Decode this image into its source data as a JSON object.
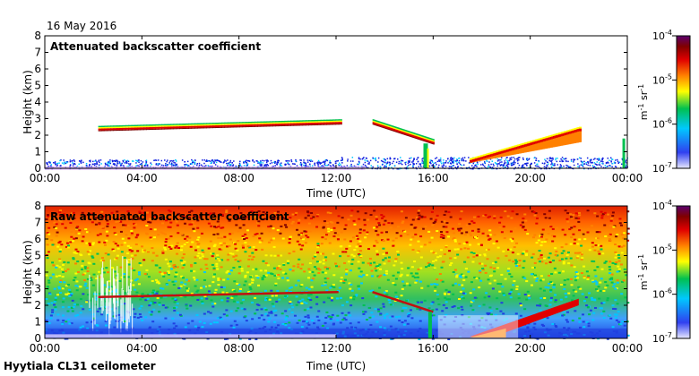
{
  "header": {
    "date": "16 May 2016"
  },
  "footer": {
    "site": "Hyytiala CL31 ceilometer"
  },
  "chart_data": [
    {
      "type": "heatmap",
      "title": "Attenuated backscatter coefficient",
      "xlabel": "Time (UTC)",
      "ylabel": "Height (km)",
      "xlim": [
        0,
        24
      ],
      "ylim": [
        0,
        8
      ],
      "x_ticks": [
        "00:00",
        "04:00",
        "08:00",
        "12:00",
        "16:00",
        "20:00",
        "00:00"
      ],
      "y_ticks": [
        "0",
        "1",
        "2",
        "3",
        "4",
        "5",
        "6",
        "7",
        "8"
      ],
      "colorbar": {
        "label": "m-1 sr-1",
        "ticks": [
          "10-7",
          "10-6",
          "10-5",
          "10-4"
        ],
        "range": [
          1e-07,
          0.0001
        ],
        "scale": "log"
      },
      "layers": [
        {
          "name": "boundary-layer",
          "height_km": [
            0.1,
            0.5
          ],
          "time_h": [
            0,
            24
          ]
        },
        {
          "name": "elevated-layer",
          "time_h": [
            2.2,
            12.1
          ],
          "height_km": [
            2.4,
            2.8
          ]
        },
        {
          "name": "descending-layer",
          "time_h": [
            13.5,
            16.0
          ],
          "height_km": [
            2.8,
            1.6
          ]
        },
        {
          "name": "evening-layer",
          "time_h": [
            17.5,
            22.0
          ],
          "height_km": [
            0.5,
            2.4
          ]
        }
      ]
    },
    {
      "type": "heatmap",
      "title": "Raw attenuated backscatter coefficient",
      "xlabel": "Time (UTC)",
      "ylabel": "Height (km)",
      "xlim": [
        0,
        24
      ],
      "ylim": [
        0,
        8
      ],
      "x_ticks": [
        "00:00",
        "04:00",
        "08:00",
        "12:00",
        "16:00",
        "20:00",
        "00:00"
      ],
      "y_ticks": [
        "0",
        "1",
        "2",
        "3",
        "4",
        "5",
        "6",
        "7",
        "8"
      ],
      "colorbar": {
        "label": "m-1 sr-1",
        "ticks": [
          "10-7",
          "10-6",
          "10-5",
          "10-4"
        ],
        "range": [
          1e-07,
          0.0001
        ],
        "scale": "log"
      }
    }
  ],
  "colors": {
    "colormap": [
      "#d8d8ff",
      "#1020e0",
      "#00c8ff",
      "#00c050",
      "#ffff00",
      "#ff8000",
      "#e00000",
      "#800000",
      "#600080"
    ]
  }
}
